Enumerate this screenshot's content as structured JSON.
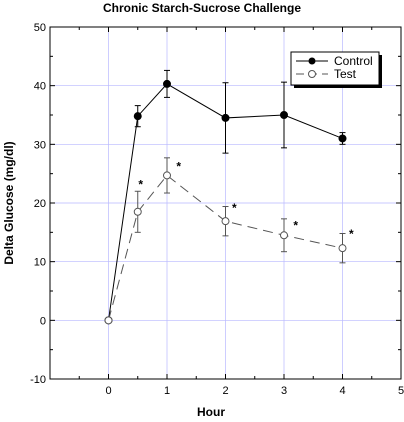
{
  "chart_data": {
    "type": "line",
    "title": "Chronic Starch-Sucrose Challenge",
    "xlabel": "Hour",
    "ylabel": "Delta Glucose (mg/dl)",
    "xlim": [
      -1,
      5
    ],
    "ylim": [
      -10,
      50
    ],
    "xticks": [
      0,
      1,
      2,
      3,
      4,
      5
    ],
    "yticks": [
      -10,
      0,
      10,
      20,
      30,
      40,
      50
    ],
    "grid": true,
    "legend_position": "top-right",
    "series": [
      {
        "name": "Control",
        "color": "#000000",
        "marker": "filled-circle",
        "line": "solid",
        "x": [
          0,
          0.5,
          1,
          2,
          3,
          4
        ],
        "y": [
          0,
          34.8,
          40.3,
          34.5,
          35.0,
          31.0
        ],
        "error": [
          0,
          1.8,
          2.3,
          6.0,
          5.6,
          1.0
        ]
      },
      {
        "name": "Test",
        "color": "#555555",
        "marker": "open-circle",
        "line": "dashed",
        "x": [
          0,
          0.5,
          1,
          2,
          3,
          4
        ],
        "y": [
          0,
          18.5,
          24.7,
          16.9,
          14.5,
          12.3
        ],
        "error": [
          0,
          3.5,
          3.0,
          2.5,
          2.8,
          2.5
        ]
      }
    ],
    "annotations": [
      {
        "text": "*",
        "x": 0.55,
        "y": 22.5
      },
      {
        "text": "*",
        "x": 1.2,
        "y": 25.5
      },
      {
        "text": "*",
        "x": 2.15,
        "y": 18.5
      },
      {
        "text": "*",
        "x": 3.2,
        "y": 15.5
      },
      {
        "text": "*",
        "x": 4.15,
        "y": 14.0
      }
    ]
  }
}
